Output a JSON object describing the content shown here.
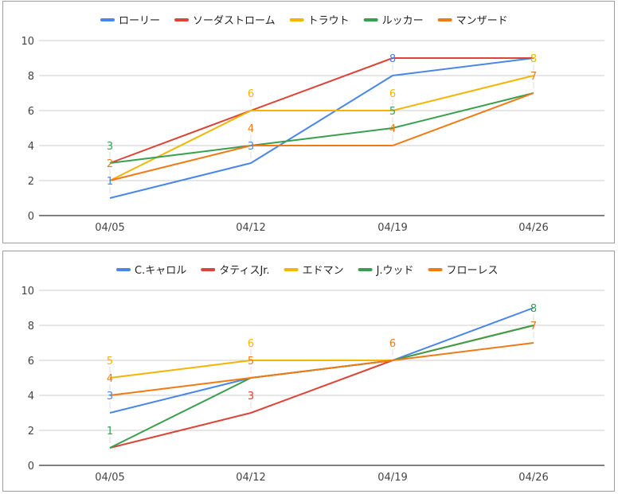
{
  "chart_data": [
    {
      "type": "line",
      "categories": [
        "04/05",
        "04/12",
        "04/19",
        "04/26"
      ],
      "ylim": [
        0,
        10
      ],
      "yticks": [
        "0",
        "2",
        "4",
        "6",
        "8",
        "10"
      ],
      "grid": true,
      "legend": "top-center",
      "series": [
        {
          "name": "ローリー",
          "color": "#4a86e8",
          "values": [
            1,
            3,
            8,
            9
          ],
          "labels": [
            "1",
            "3",
            "8",
            ""
          ]
        },
        {
          "name": "ソーダストローム",
          "color": "#db4437",
          "values": [
            3,
            6,
            9,
            9
          ],
          "labels": [
            "",
            "",
            "",
            ""
          ]
        },
        {
          "name": "トラウト",
          "color": "#f4b400",
          "values": [
            2,
            6,
            6,
            8
          ],
          "labels": [
            "",
            "6",
            "6",
            "8"
          ]
        },
        {
          "name": "ルッカー",
          "color": "#3a9e4f",
          "values": [
            3,
            4,
            5,
            7
          ],
          "labels": [
            "3",
            "",
            "5",
            ""
          ]
        },
        {
          "name": "マンザード",
          "color": "#f07a14",
          "values": [
            2,
            4,
            4,
            7
          ],
          "labels": [
            "2",
            "4",
            "4",
            "7"
          ]
        }
      ]
    },
    {
      "type": "line",
      "categories": [
        "04/05",
        "04/12",
        "04/19",
        "04/26"
      ],
      "ylim": [
        0,
        10
      ],
      "yticks": [
        "0",
        "2",
        "4",
        "6",
        "8",
        "10"
      ],
      "grid": true,
      "legend": "top-center",
      "series": [
        {
          "name": "C.キャロル",
          "color": "#4a86e8",
          "values": [
            3,
            5,
            6,
            9
          ],
          "labels": [
            "3",
            "",
            "",
            ""
          ]
        },
        {
          "name": "タティスJr.",
          "color": "#db4437",
          "values": [
            1,
            3,
            6,
            8
          ],
          "labels": [
            "",
            "3",
            "",
            ""
          ]
        },
        {
          "name": "エドマン",
          "color": "#f4b400",
          "values": [
            5,
            6,
            6,
            8
          ],
          "labels": [
            "5",
            "6",
            "",
            ""
          ]
        },
        {
          "name": "J.ウッド",
          "color": "#3a9e4f",
          "values": [
            1,
            5,
            6,
            8
          ],
          "labels": [
            "1",
            "",
            "",
            "8"
          ]
        },
        {
          "name": "フローレス",
          "color": "#f07a14",
          "values": [
            4,
            5,
            6,
            7
          ],
          "labels": [
            "4",
            "5",
            "6",
            "7"
          ]
        }
      ]
    }
  ]
}
